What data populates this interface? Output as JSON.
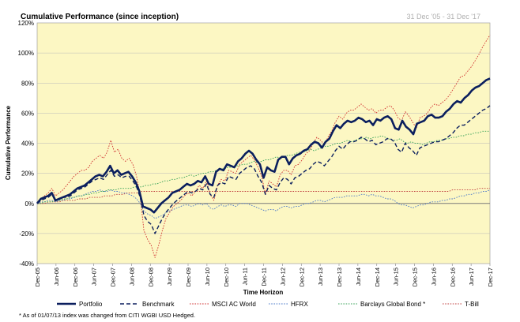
{
  "chart_data": {
    "type": "line",
    "title": "Cumulative Performance (since inception)",
    "date_range": "31 Dec '05 - 31 Dec '17",
    "xlabel": "Time Horizon",
    "ylabel": "Cumulative Performance",
    "ylim": [
      -40,
      120
    ],
    "y_ticks": [
      -40,
      -20,
      0,
      20,
      40,
      60,
      80,
      100,
      120
    ],
    "y_tick_format": "%",
    "x_ticks": [
      "Dec-05",
      "Jun-06",
      "Dec-06",
      "Jun-07",
      "Dec-07",
      "Jun-08",
      "Dec-08",
      "Jun-09",
      "Dec-09",
      "Jun-10",
      "Dec-10",
      "Jun-11",
      "Dec-11",
      "Jun-12",
      "Dec-12",
      "Jun-13",
      "Dec-13",
      "Jun-14",
      "Dec-14",
      "Jun-15",
      "Dec-15",
      "Jun-16",
      "Dec-16",
      "Jun-17",
      "Dec-17"
    ],
    "grid": true,
    "plot_background": "#fcf7c3",
    "legend_position": "bottom",
    "footnote": "* As of 01/07/13 index was changed from CITI WGBI USD Hedged.",
    "series": [
      {
        "name": "Portfolio",
        "color": "#0b1f5e",
        "style": "solid-thick",
        "values": [
          0,
          3,
          4,
          5,
          7,
          2,
          3,
          4,
          5,
          6,
          8,
          10,
          11,
          12,
          14,
          16,
          18,
          19,
          18,
          21,
          25,
          20,
          22,
          19,
          20,
          21,
          18,
          14,
          8,
          -2,
          -3,
          -4,
          -6,
          -3,
          0,
          2,
          4,
          7,
          8,
          9,
          11,
          13,
          12,
          13,
          15,
          14,
          18,
          13,
          12,
          21,
          23,
          22,
          26,
          25,
          24,
          28,
          30,
          33,
          35,
          33,
          29,
          26,
          17,
          24,
          22,
          21,
          29,
          31,
          31,
          26,
          30,
          32,
          33,
          35,
          36,
          39,
          41,
          40,
          37,
          41,
          43,
          48,
          52,
          50,
          53,
          55,
          54,
          55,
          57,
          56,
          54,
          55,
          52,
          56,
          55,
          57,
          58,
          56,
          50,
          49,
          55,
          51,
          49,
          46,
          53,
          54,
          55,
          58,
          59,
          57,
          57,
          58,
          61,
          63,
          66,
          68,
          67,
          70,
          72,
          75,
          77,
          78,
          80,
          82,
          83
        ]
      },
      {
        "name": "Benchmark",
        "color": "#0b1f5e",
        "style": "dashed",
        "values": [
          0,
          2,
          3,
          4,
          6,
          2,
          3,
          4,
          4,
          5,
          7,
          9,
          10,
          11,
          13,
          15,
          16,
          17,
          16,
          19,
          22,
          18,
          19,
          17,
          18,
          18,
          15,
          11,
          4,
          -8,
          -12,
          -14,
          -20,
          -15,
          -10,
          -6,
          -3,
          0,
          2,
          4,
          6,
          8,
          7,
          8,
          10,
          9,
          13,
          6,
          4,
          12,
          14,
          13,
          18,
          17,
          16,
          20,
          22,
          24,
          25,
          23,
          18,
          14,
          6,
          12,
          10,
          9,
          14,
          17,
          16,
          13,
          17,
          18,
          20,
          22,
          23,
          26,
          28,
          27,
          25,
          28,
          31,
          35,
          38,
          36,
          39,
          41,
          41,
          42,
          44,
          43,
          41,
          42,
          39,
          40,
          41,
          43,
          43,
          41,
          36,
          34,
          40,
          37,
          35,
          32,
          37,
          38,
          39,
          40,
          41,
          41,
          42,
          43,
          45,
          47,
          50,
          52,
          52,
          54,
          56,
          58,
          60,
          62,
          63,
          65
        ]
      },
      {
        "name": "MSCI AC World",
        "color": "#d03030",
        "style": "dotted",
        "values": [
          0,
          3,
          5,
          7,
          10,
          5,
          7,
          9,
          12,
          15,
          18,
          20,
          22,
          22,
          24,
          28,
          30,
          32,
          30,
          34,
          42,
          34,
          36,
          30,
          28,
          30,
          26,
          18,
          5,
          -18,
          -24,
          -28,
          -36,
          -28,
          -18,
          -10,
          -6,
          -2,
          0,
          2,
          5,
          7,
          5,
          8,
          12,
          10,
          15,
          6,
          2,
          12,
          16,
          15,
          22,
          21,
          20,
          26,
          28,
          30,
          32,
          29,
          24,
          18,
          6,
          15,
          13,
          11,
          19,
          22,
          22,
          19,
          25,
          26,
          29,
          33,
          35,
          40,
          44,
          42,
          39,
          44,
          48,
          54,
          58,
          56,
          60,
          62,
          62,
          64,
          66,
          64,
          62,
          63,
          60,
          62,
          62,
          64,
          65,
          62,
          57,
          55,
          61,
          58,
          54,
          50,
          57,
          58,
          60,
          64,
          66,
          65,
          67,
          69,
          72,
          76,
          80,
          84,
          85,
          88,
          91,
          95,
          99,
          104,
          108,
          112
        ]
      },
      {
        "name": "HFRX",
        "color": "#4a78c8",
        "style": "dotted",
        "values": [
          0,
          1,
          1,
          2,
          2,
          1,
          2,
          2,
          3,
          3,
          4,
          5,
          5,
          6,
          7,
          8,
          8,
          9,
          8,
          8,
          9,
          8,
          8,
          7,
          7,
          6,
          5,
          3,
          0,
          -5,
          -7,
          -8,
          -10,
          -9,
          -8,
          -6,
          -5,
          -4,
          -3,
          -2,
          -1,
          -1,
          -2,
          -1,
          0,
          -1,
          0,
          -3,
          -4,
          -2,
          -1,
          -2,
          -1,
          -1,
          -2,
          0,
          0,
          0,
          -1,
          -2,
          -3,
          -4,
          -5,
          -4,
          -4,
          -5,
          -3,
          -2,
          -2,
          -3,
          -2,
          -2,
          -1,
          0,
          0,
          1,
          2,
          2,
          1,
          2,
          3,
          4,
          4,
          4,
          5,
          5,
          5,
          5,
          6,
          6,
          5,
          6,
          5,
          5,
          4,
          3,
          3,
          2,
          0,
          -1,
          -1,
          -2,
          -3,
          -2,
          -1,
          -1,
          0,
          1,
          1,
          1,
          2,
          2,
          3,
          3,
          4,
          5,
          5,
          6,
          6,
          7,
          7,
          8,
          8,
          9
        ]
      },
      {
        "name": "Barclays Global Bond *",
        "color": "#3aa35a",
        "style": "dotted",
        "values": [
          0,
          0,
          1,
          1,
          1,
          2,
          2,
          3,
          3,
          4,
          4,
          5,
          5,
          6,
          6,
          7,
          7,
          8,
          8,
          9,
          9,
          9,
          10,
          10,
          10,
          10,
          11,
          11,
          11,
          12,
          12,
          13,
          13,
          14,
          15,
          15,
          16,
          16,
          17,
          17,
          18,
          19,
          18,
          19,
          20,
          20,
          21,
          21,
          22,
          23,
          23,
          24,
          24,
          25,
          25,
          26,
          26,
          27,
          28,
          27,
          28,
          29,
          29,
          30,
          31,
          30,
          31,
          32,
          32,
          33,
          34,
          34,
          35,
          36,
          35,
          36,
          37,
          38,
          38,
          39,
          40,
          40,
          41,
          42,
          41,
          42,
          43,
          43,
          44,
          43,
          44,
          44,
          45,
          44,
          43,
          42,
          42,
          43,
          41,
          40,
          41,
          40,
          40,
          39,
          40,
          41,
          41,
          42,
          42,
          43,
          43,
          44,
          44,
          45,
          45,
          46,
          46,
          47,
          47,
          48,
          48,
          48
        ]
      },
      {
        "name": "T-Bill",
        "color": "#c04040",
        "style": "dotted",
        "values": [
          0,
          0,
          0,
          1,
          1,
          1,
          1,
          2,
          2,
          2,
          2,
          3,
          3,
          3,
          4,
          4,
          4,
          4,
          5,
          5,
          5,
          6,
          6,
          6,
          7,
          7,
          7,
          7,
          8,
          8,
          8,
          8,
          8,
          8,
          8,
          8,
          8,
          8,
          8,
          8,
          8,
          8,
          8,
          8,
          8,
          8,
          8,
          8,
          8,
          8,
          8,
          8,
          8,
          8,
          8,
          8,
          8,
          8,
          8,
          8,
          8,
          8,
          8,
          8,
          8,
          8,
          8,
          8,
          8,
          8,
          8,
          8,
          8,
          8,
          8,
          8,
          8,
          8,
          8,
          8,
          8,
          8,
          8,
          8,
          8,
          8,
          8,
          8,
          8,
          8,
          8,
          8,
          8,
          8,
          8,
          8,
          8,
          8,
          8,
          8,
          8,
          8,
          8,
          8,
          8,
          8,
          8,
          8,
          8,
          8,
          8,
          9,
          9,
          9,
          9,
          9,
          9,
          9,
          10,
          10,
          10,
          10
        ]
      }
    ]
  }
}
